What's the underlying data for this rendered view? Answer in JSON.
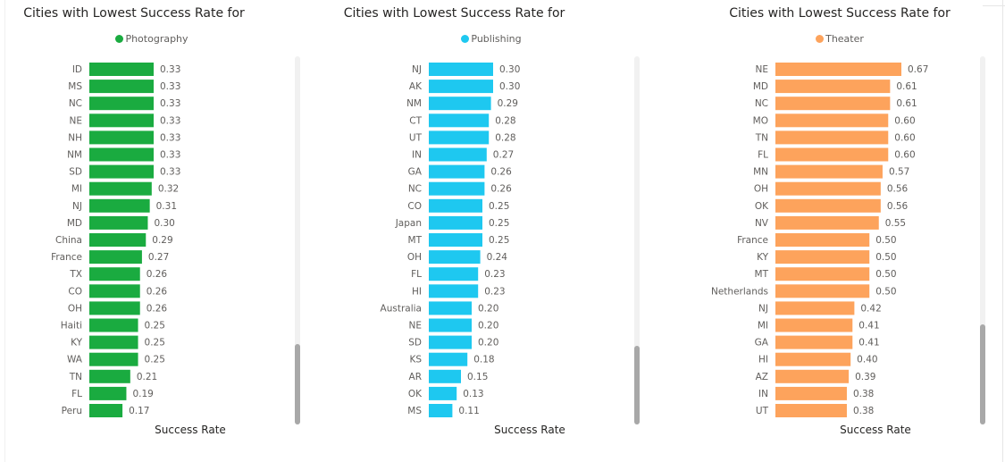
{
  "chart_data": [
    {
      "type": "bar",
      "orientation": "horizontal",
      "title": "Cities with Lowest Success Rate for",
      "legend": "Photography",
      "color": "#1aab40",
      "xlabel": "Success Rate",
      "categories": [
        "ID",
        "MS",
        "NC",
        "NE",
        "NH",
        "NM",
        "SD",
        "MI",
        "NJ",
        "MD",
        "China",
        "France",
        "TX",
        "CO",
        "OH",
        "Haiti",
        "KY",
        "WA",
        "TN",
        "FL",
        "Peru"
      ],
      "values": [
        0.33,
        0.33,
        0.33,
        0.33,
        0.33,
        0.33,
        0.33,
        0.32,
        0.31,
        0.3,
        0.29,
        0.27,
        0.26,
        0.26,
        0.26,
        0.25,
        0.25,
        0.25,
        0.21,
        0.19,
        0.17
      ],
      "labels": [
        "0.33",
        "0.33",
        "0.33",
        "0.33",
        "0.33",
        "0.33",
        "0.33",
        "0.32",
        "0.31",
        "0.30",
        "0.29",
        "0.27",
        "0.26",
        "0.26",
        "0.26",
        "0.25",
        "0.25",
        "0.25",
        "0.21",
        "0.19",
        "0.17"
      ]
    },
    {
      "type": "bar",
      "orientation": "horizontal",
      "title": "Cities with Lowest Success Rate for",
      "legend": "Publishing",
      "color": "#1ec8f0",
      "xlabel": "Success Rate",
      "categories": [
        "NJ",
        "AK",
        "NM",
        "CT",
        "UT",
        "IN",
        "GA",
        "NC",
        "CO",
        "Japan",
        "MT",
        "OH",
        "FL",
        "HI",
        "Australia",
        "NE",
        "SD",
        "KS",
        "AR",
        "OK",
        "MS"
      ],
      "values": [
        0.3,
        0.3,
        0.29,
        0.28,
        0.28,
        0.27,
        0.26,
        0.26,
        0.25,
        0.25,
        0.25,
        0.24,
        0.23,
        0.23,
        0.2,
        0.2,
        0.2,
        0.18,
        0.15,
        0.13,
        0.11
      ],
      "labels": [
        "0.30",
        "0.30",
        "0.29",
        "0.28",
        "0.28",
        "0.27",
        "0.26",
        "0.26",
        "0.25",
        "0.25",
        "0.25",
        "0.24",
        "0.23",
        "0.23",
        "0.20",
        "0.20",
        "0.20",
        "0.18",
        "0.15",
        "0.13",
        "0.11"
      ]
    },
    {
      "type": "bar",
      "orientation": "horizontal",
      "title": "Cities with Lowest Success Rate for",
      "legend": "Theater",
      "color": "#fda35c",
      "xlabel": "Success Rate",
      "categories": [
        "NE",
        "MD",
        "NC",
        "MO",
        "TN",
        "FL",
        "MN",
        "OH",
        "OK",
        "NV",
        "France",
        "KY",
        "MT",
        "Netherlands",
        "NJ",
        "MI",
        "GA",
        "HI",
        "AZ",
        "IN",
        "UT"
      ],
      "values": [
        0.67,
        0.61,
        0.61,
        0.6,
        0.6,
        0.6,
        0.57,
        0.56,
        0.56,
        0.55,
        0.5,
        0.5,
        0.5,
        0.5,
        0.42,
        0.41,
        0.41,
        0.4,
        0.39,
        0.38,
        0.38
      ],
      "labels": [
        "0.67",
        "0.61",
        "0.61",
        "0.60",
        "0.60",
        "0.60",
        "0.57",
        "0.56",
        "0.56",
        "0.55",
        "0.50",
        "0.50",
        "0.50",
        "0.50",
        "0.42",
        "0.41",
        "0.41",
        "0.40",
        "0.39",
        "0.38",
        "0.38"
      ]
    }
  ]
}
